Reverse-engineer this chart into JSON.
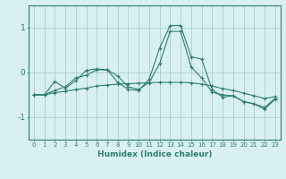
{
  "xlabel": "Humidex (Indice chaleur)",
  "x": [
    0,
    1,
    2,
    3,
    4,
    5,
    6,
    7,
    8,
    9,
    10,
    11,
    12,
    13,
    14,
    15,
    16,
    17,
    18,
    19,
    20,
    21,
    22,
    23
  ],
  "line1": [
    -0.5,
    -0.5,
    -0.45,
    -0.42,
    -0.38,
    -0.35,
    -0.3,
    -0.28,
    -0.26,
    -0.25,
    -0.24,
    -0.23,
    -0.22,
    -0.22,
    -0.22,
    -0.23,
    -0.26,
    -0.3,
    -0.36,
    -0.4,
    -0.46,
    -0.52,
    -0.58,
    -0.54
  ],
  "line2": [
    -0.5,
    -0.5,
    -0.2,
    -0.35,
    -0.18,
    0.05,
    0.08,
    0.06,
    -0.22,
    -0.38,
    -0.4,
    -0.15,
    0.55,
    1.05,
    1.05,
    0.35,
    0.3,
    -0.38,
    -0.55,
    -0.52,
    -0.65,
    -0.7,
    -0.82,
    -0.6
  ],
  "line3": [
    -0.5,
    -0.5,
    -0.4,
    -0.32,
    -0.12,
    -0.06,
    0.06,
    0.06,
    -0.08,
    -0.32,
    -0.38,
    -0.22,
    0.2,
    0.92,
    0.92,
    0.12,
    -0.12,
    -0.44,
    -0.5,
    -0.52,
    -0.65,
    -0.7,
    -0.78,
    -0.58
  ],
  "line_color": "#2e7d6e",
  "bg_color": "#d8f0f0",
  "grid_color": "#aecece",
  "ylim": [
    -1.5,
    1.5
  ],
  "yticks": [
    -1,
    0,
    1
  ],
  "figsize": [
    3.2,
    2.0
  ],
  "dpi": 100
}
